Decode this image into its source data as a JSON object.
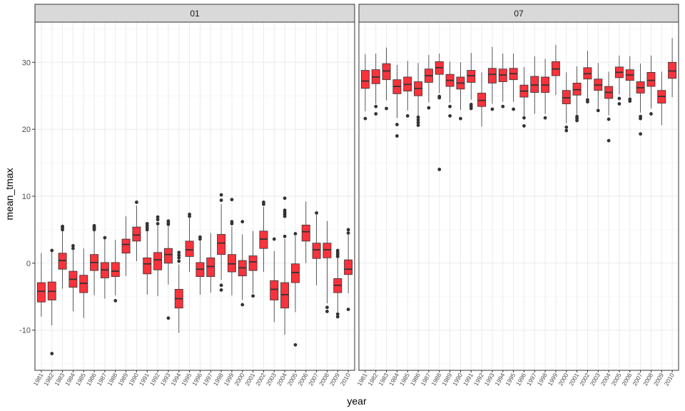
{
  "chart_data": {
    "type": "boxplot",
    "xlabel": "year",
    "ylabel": "mean_tmax",
    "ylim": [
      -16,
      36
    ],
    "yticks": [
      -10,
      0,
      10,
      20,
      30
    ],
    "years": [
      "1981",
      "1982",
      "1983",
      "1984",
      "1985",
      "1986",
      "1987",
      "1988",
      "1989",
      "1990",
      "1991",
      "1992",
      "1993",
      "1994",
      "1995",
      "1996",
      "1997",
      "1998",
      "1999",
      "2000",
      "2001",
      "2002",
      "2003",
      "2004",
      "2005",
      "2006",
      "2007",
      "2008",
      "2009",
      "2010"
    ],
    "grid": true,
    "legend": "none",
    "fill_color": "#f8333c",
    "panels": [
      {
        "label": "01",
        "boxes": [
          {
            "year": "1981",
            "whisker_low": -8.0,
            "q1": -5.8,
            "median": -4.2,
            "q3": -2.9,
            "whisker_high": 1.5,
            "outliers": []
          },
          {
            "year": "1982",
            "whisker_low": -9.3,
            "q1": -5.5,
            "median": -4.2,
            "q3": -2.8,
            "whisker_high": 1.8,
            "outliers": [
              -13.5,
              1.9
            ]
          },
          {
            "year": "1983",
            "whisker_low": -3.8,
            "q1": -0.9,
            "median": 0.4,
            "q3": 1.5,
            "whisker_high": 4.8,
            "outliers": [
              5.0,
              5.3,
              5.5
            ]
          },
          {
            "year": "1984",
            "whisker_low": -7.2,
            "q1": -3.6,
            "median": -2.4,
            "q3": -1.2,
            "whisker_high": 1.9,
            "outliers": [
              2.2,
              2.6
            ]
          },
          {
            "year": "1985",
            "whisker_low": -8.2,
            "q1": -4.4,
            "median": -3.0,
            "q3": -1.8,
            "whisker_high": 2.2,
            "outliers": []
          },
          {
            "year": "1986",
            "whisker_low": -4.8,
            "q1": -1.1,
            "median": 0.1,
            "q3": 1.3,
            "whisker_high": 4.8,
            "outliers": [
              5.0,
              5.2,
              5.4,
              5.6
            ]
          },
          {
            "year": "1987",
            "whisker_low": -5.3,
            "q1": -2.2,
            "median": -1.0,
            "q3": 0.1,
            "whisker_high": 3.6,
            "outliers": [
              3.8
            ]
          },
          {
            "year": "1988",
            "whisker_low": -4.8,
            "q1": -2.0,
            "median": -1.2,
            "q3": 0.1,
            "whisker_high": 3.5,
            "outliers": [
              -5.6
            ]
          },
          {
            "year": "1989",
            "whisker_low": -1.9,
            "q1": 1.5,
            "median": 2.8,
            "q3": 3.6,
            "whisker_high": 7.0,
            "outliers": []
          },
          {
            "year": "1990",
            "whisker_low": 0.3,
            "q1": 3.3,
            "median": 4.2,
            "q3": 5.4,
            "whisker_high": 8.6,
            "outliers": [
              9.1
            ]
          },
          {
            "year": "1991",
            "whisker_low": -4.7,
            "q1": -1.6,
            "median": -0.1,
            "q3": 0.8,
            "whisker_high": 4.8,
            "outliers": [
              5.0,
              5.3,
              5.6,
              5.9
            ]
          },
          {
            "year": "1992",
            "whisker_low": -4.9,
            "q1": -1.0,
            "median": 0.5,
            "q3": 1.6,
            "whisker_high": 5.6,
            "outliers": [
              5.9,
              6.5,
              6.9
            ]
          },
          {
            "year": "1993",
            "whisker_low": -3.2,
            "q1": 0.0,
            "median": 1.3,
            "q3": 2.2,
            "whisker_high": 5.5,
            "outliers": [
              -8.2,
              5.8,
              6.0,
              6.3
            ]
          },
          {
            "year": "1994",
            "whisker_low": -10.4,
            "q1": -6.7,
            "median": -5.3,
            "q3": -3.9,
            "whisker_high": -0.2,
            "outliers": [
              0.3,
              0.8,
              1.2,
              1.6
            ]
          },
          {
            "year": "1995",
            "whisker_low": -1.3,
            "q1": 1.0,
            "median": 2.0,
            "q3": 3.3,
            "whisker_high": 6.7,
            "outliers": [
              7.0,
              7.3
            ]
          },
          {
            "year": "1996",
            "whisker_low": -4.7,
            "q1": -2.0,
            "median": -0.9,
            "q3": 0.1,
            "whisker_high": 3.3,
            "outliers": [
              3.6,
              3.9
            ]
          },
          {
            "year": "1997",
            "whisker_low": -4.4,
            "q1": -2.0,
            "median": -0.5,
            "q3": 0.8,
            "whisker_high": 4.5,
            "outliers": []
          },
          {
            "year": "1998",
            "whisker_low": -2.5,
            "q1": 1.3,
            "median": 3.0,
            "q3": 4.3,
            "whisker_high": 8.8,
            "outliers": [
              -3.3,
              -4.0,
              9.4,
              10.2
            ]
          },
          {
            "year": "1999",
            "whisker_low": -4.8,
            "q1": -1.3,
            "median": -0.1,
            "q3": 1.3,
            "whisker_high": 5.5,
            "outliers": [
              5.9,
              6.2,
              9.5
            ]
          },
          {
            "year": "2000",
            "whisker_low": -5.5,
            "q1": -1.9,
            "median": -0.7,
            "q3": 0.4,
            "whisker_high": 4.3,
            "outliers": [
              -6.2,
              6.2
            ]
          },
          {
            "year": "2001",
            "whisker_low": -4.5,
            "q1": -1.1,
            "median": 0.2,
            "q3": 1.1,
            "whisker_high": 4.8,
            "outliers": [
              -4.9
            ]
          },
          {
            "year": "2002",
            "whisker_low": -1.3,
            "q1": 2.2,
            "median": 3.6,
            "q3": 4.8,
            "whisker_high": 8.4,
            "outliers": [
              8.8,
              9.1
            ]
          },
          {
            "year": "2003",
            "whisker_low": -8.8,
            "q1": -5.5,
            "median": -3.9,
            "q3": -2.6,
            "whisker_high": 1.8,
            "outliers": [
              3.6
            ]
          },
          {
            "year": "2004",
            "whisker_low": -10.7,
            "q1": -6.7,
            "median": -4.7,
            "q3": -2.9,
            "whisker_high": 3.6,
            "outliers": [
              4.0,
              7.0,
              7.3,
              7.6,
              7.9,
              9.7
            ]
          },
          {
            "year": "2005",
            "whisker_low": -7.3,
            "q1": -2.9,
            "median": -1.4,
            "q3": -0.1,
            "whisker_high": 4.1,
            "outliers": [
              -12.2,
              4.4
            ]
          },
          {
            "year": "2006",
            "whisker_low": 0.0,
            "q1": 3.3,
            "median": 4.7,
            "q3": 5.7,
            "whisker_high": 9.2,
            "outliers": []
          },
          {
            "year": "2007",
            "whisker_low": -3.3,
            "q1": 0.7,
            "median": 2.0,
            "q3": 3.0,
            "whisker_high": 7.2,
            "outliers": [
              7.5
            ]
          },
          {
            "year": "2008",
            "whisker_low": -6.0,
            "q1": 0.8,
            "median": 2.0,
            "q3": 3.0,
            "whisker_high": 6.3,
            "outliers": [
              -7.2,
              -6.6
            ]
          },
          {
            "year": "2009",
            "whisker_low": -7.3,
            "q1": -4.4,
            "median": -3.3,
            "q3": -2.3,
            "whisker_high": 0.8,
            "outliers": [
              -7.6,
              -8.0,
              1.0,
              1.3,
              1.6,
              1.9
            ]
          },
          {
            "year": "2010",
            "whisker_low": -4.5,
            "q1": -1.7,
            "median": -0.9,
            "q3": 0.5,
            "whisker_high": 4.2,
            "outliers": [
              -6.9,
              4.5,
              5.0
            ]
          }
        ]
      },
      {
        "label": "07",
        "boxes": [
          {
            "year": "1981",
            "whisker_low": 22.7,
            "q1": 26.1,
            "median": 27.2,
            "q3": 28.8,
            "whisker_high": 31.2,
            "outliers": [
              21.6
            ]
          },
          {
            "year": "1982",
            "whisker_low": 23.8,
            "q1": 26.8,
            "median": 27.8,
            "q3": 28.9,
            "whisker_high": 31.3,
            "outliers": [
              22.3,
              23.4
            ]
          },
          {
            "year": "1983",
            "whisker_low": 24.3,
            "q1": 27.4,
            "median": 28.7,
            "q3": 29.8,
            "whisker_high": 32.2,
            "outliers": [
              23.1
            ]
          },
          {
            "year": "1984",
            "whisker_low": 21.7,
            "q1": 25.3,
            "median": 26.4,
            "q3": 27.4,
            "whisker_high": 29.6,
            "outliers": [
              19.0,
              20.7
            ]
          },
          {
            "year": "1985",
            "whisker_low": 22.8,
            "q1": 25.7,
            "median": 26.7,
            "q3": 27.8,
            "whisker_high": 30.2,
            "outliers": [
              22.0
            ]
          },
          {
            "year": "1986",
            "whisker_low": 22.0,
            "q1": 25.0,
            "median": 26.1,
            "q3": 27.1,
            "whisker_high": 29.9,
            "outliers": [
              20.6,
              21.0,
              21.4,
              21.8
            ]
          },
          {
            "year": "1987",
            "whisker_low": 24.0,
            "q1": 27.0,
            "median": 28.0,
            "q3": 29.0,
            "whisker_high": 31.1,
            "outliers": [
              23.2
            ]
          },
          {
            "year": "1988",
            "whisker_low": 25.4,
            "q1": 28.2,
            "median": 29.2,
            "q3": 30.1,
            "whisker_high": 31.3,
            "outliers": [
              14.0,
              24.7,
              24.9
            ]
          },
          {
            "year": "1989",
            "whisker_low": 24.0,
            "q1": 26.4,
            "median": 27.3,
            "q3": 28.2,
            "whisker_high": 30.1,
            "outliers": [
              22.0,
              23.4
            ]
          },
          {
            "year": "1990",
            "whisker_low": 22.9,
            "q1": 26.0,
            "median": 26.9,
            "q3": 27.8,
            "whisker_high": 30.0,
            "outliers": [
              21.6
            ]
          },
          {
            "year": "1991",
            "whisker_low": 24.4,
            "q1": 27.0,
            "median": 28.0,
            "q3": 28.8,
            "whisker_high": 31.4,
            "outliers": [
              23.1,
              23.4,
              23.7
            ]
          },
          {
            "year": "1992",
            "whisker_low": 20.4,
            "q1": 23.4,
            "median": 24.3,
            "q3": 25.4,
            "whisker_high": 28.5,
            "outliers": []
          },
          {
            "year": "1993",
            "whisker_low": 23.8,
            "q1": 26.9,
            "median": 28.2,
            "q3": 29.1,
            "whisker_high": 32.3,
            "outliers": [
              23.0
            ]
          },
          {
            "year": "1994",
            "whisker_low": 24.1,
            "q1": 27.1,
            "median": 28.1,
            "q3": 29.0,
            "whisker_high": 31.3,
            "outliers": [
              23.4
            ]
          },
          {
            "year": "1995",
            "whisker_low": 24.1,
            "q1": 27.4,
            "median": 28.3,
            "q3": 29.1,
            "whisker_high": 31.3,
            "outliers": [
              23.0
            ]
          },
          {
            "year": "1996",
            "whisker_low": 22.0,
            "q1": 24.8,
            "median": 25.7,
            "q3": 26.6,
            "whisker_high": 29.3,
            "outliers": [
              20.5,
              21.7
            ]
          },
          {
            "year": "1997",
            "whisker_low": 22.3,
            "q1": 25.5,
            "median": 26.6,
            "q3": 27.9,
            "whisker_high": 30.9,
            "outliers": []
          },
          {
            "year": "1998",
            "whisker_low": 22.3,
            "q1": 25.5,
            "median": 26.6,
            "q3": 27.8,
            "whisker_high": 30.5,
            "outliers": [
              21.7
            ]
          },
          {
            "year": "1999",
            "whisker_low": 25.1,
            "q1": 28.0,
            "median": 29.0,
            "q3": 30.1,
            "whisker_high": 32.6,
            "outliers": []
          },
          {
            "year": "2000",
            "whisker_low": 20.9,
            "q1": 23.8,
            "median": 24.7,
            "q3": 25.8,
            "whisker_high": 28.5,
            "outliers": [
              19.8,
              20.3
            ]
          },
          {
            "year": "2001",
            "whisker_low": 22.2,
            "q1": 25.1,
            "median": 25.9,
            "q3": 26.9,
            "whisker_high": 29.4,
            "outliers": [
              21.3,
              21.6,
              21.9
            ]
          },
          {
            "year": "2002",
            "whisker_low": 24.7,
            "q1": 27.5,
            "median": 28.3,
            "q3": 29.2,
            "whisker_high": 31.7,
            "outliers": [
              24.1,
              24.4
            ]
          },
          {
            "year": "2003",
            "whisker_low": 23.1,
            "q1": 25.8,
            "median": 26.6,
            "q3": 27.5,
            "whisker_high": 29.9,
            "outliers": [
              22.8
            ]
          },
          {
            "year": "2004",
            "whisker_low": 22.1,
            "q1": 24.6,
            "median": 25.5,
            "q3": 26.4,
            "whisker_high": 28.6,
            "outliers": [
              18.3,
              21.5
            ]
          },
          {
            "year": "2005",
            "whisker_low": 25.2,
            "q1": 27.7,
            "median": 28.5,
            "q3": 29.3,
            "whisker_high": 31.0,
            "outliers": [
              23.8,
              24.6
            ]
          },
          {
            "year": "2006",
            "whisker_low": 24.8,
            "q1": 27.3,
            "median": 28.1,
            "q3": 28.9,
            "whisker_high": 30.9,
            "outliers": [
              24.2,
              24.5
            ]
          },
          {
            "year": "2007",
            "whisker_low": 22.5,
            "q1": 25.4,
            "median": 26.2,
            "q3": 27.1,
            "whisker_high": 29.8,
            "outliers": [
              19.3,
              21.6,
              21.9
            ]
          },
          {
            "year": "2008",
            "whisker_low": 23.1,
            "q1": 26.4,
            "median": 27.3,
            "q3": 28.5,
            "whisker_high": 31.0,
            "outliers": [
              22.3
            ]
          },
          {
            "year": "2009",
            "whisker_low": 20.6,
            "q1": 23.9,
            "median": 24.9,
            "q3": 25.8,
            "whisker_high": 28.6,
            "outliers": []
          },
          {
            "year": "2010",
            "whisker_low": 24.8,
            "q1": 27.6,
            "median": 28.7,
            "q3": 30.0,
            "whisker_high": 33.6,
            "outliers": []
          }
        ]
      }
    ]
  }
}
